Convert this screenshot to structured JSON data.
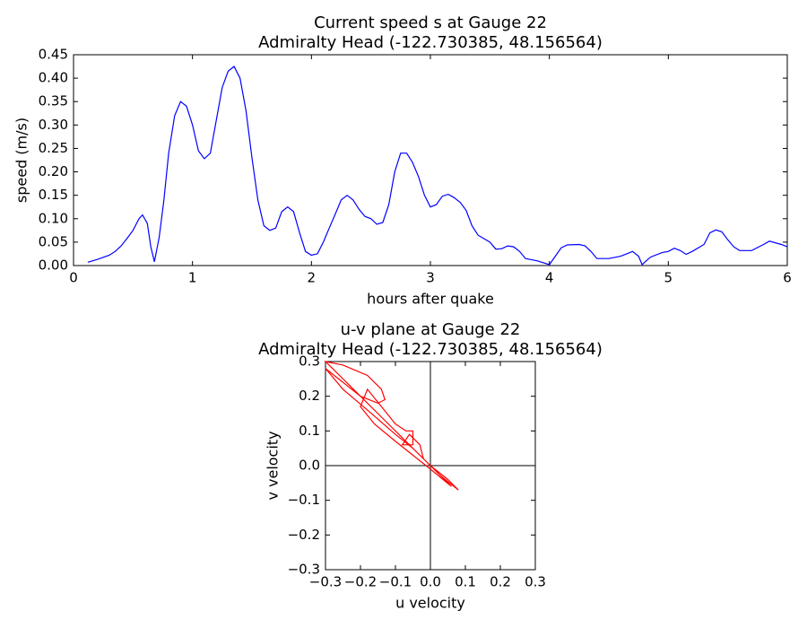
{
  "chart_data": [
    {
      "type": "line",
      "title": "Current speed s at Gauge 22",
      "subtitle": "Admiralty Head  (-122.730385, 48.156564)",
      "xlabel": "hours after quake",
      "ylabel": "speed (m/s)",
      "xlim": [
        0,
        6
      ],
      "xticks": [
        0,
        1,
        2,
        3,
        4,
        5,
        6
      ],
      "ylim": [
        0,
        0.45
      ],
      "yticks": [
        {
          "value": 0,
          "label": "0.00"
        },
        {
          "value": 0.05,
          "label": "0.05"
        },
        {
          "value": 0.1,
          "label": "0.10"
        },
        {
          "value": 0.15,
          "label": "0.15"
        },
        {
          "value": 0.2,
          "label": "0.20"
        },
        {
          "value": 0.25,
          "label": "0.25"
        },
        {
          "value": 0.3,
          "label": "0.30"
        },
        {
          "value": 0.35,
          "label": "0.35"
        },
        {
          "value": 0.4,
          "label": "0.40"
        },
        {
          "value": 0.45,
          "label": "0.45"
        }
      ],
      "grid": false,
      "zero_lines": false,
      "series": [
        {
          "color": "#0000ff",
          "x": [
            0.12,
            0.2,
            0.3,
            0.35,
            0.4,
            0.45,
            0.5,
            0.55,
            0.58,
            0.62,
            0.65,
            0.68,
            0.72,
            0.76,
            0.8,
            0.85,
            0.9,
            0.95,
            1.0,
            1.05,
            1.1,
            1.15,
            1.2,
            1.25,
            1.3,
            1.35,
            1.4,
            1.45,
            1.5,
            1.55,
            1.6,
            1.65,
            1.7,
            1.75,
            1.8,
            1.85,
            1.9,
            1.95,
            2.0,
            2.05,
            2.1,
            2.15,
            2.2,
            2.25,
            2.3,
            2.35,
            2.4,
            2.45,
            2.5,
            2.55,
            2.6,
            2.65,
            2.7,
            2.75,
            2.8,
            2.85,
            2.9,
            2.95,
            3.0,
            3.05,
            3.1,
            3.15,
            3.2,
            3.25,
            3.3,
            3.35,
            3.4,
            3.5,
            3.55,
            3.6,
            3.65,
            3.7,
            3.75,
            3.8,
            3.9,
            4.0,
            4.05,
            4.1,
            4.15,
            4.25,
            4.3,
            4.35,
            4.4,
            4.5,
            4.6,
            4.7,
            4.75,
            4.78,
            4.85,
            4.95,
            5.0,
            5.05,
            5.1,
            5.15,
            5.2,
            5.3,
            5.35,
            5.4,
            5.45,
            5.5,
            5.55,
            5.6,
            5.7,
            5.8,
            5.85,
            5.95,
            6.0
          ],
          "values": [
            0.007,
            0.013,
            0.022,
            0.03,
            0.042,
            0.058,
            0.075,
            0.1,
            0.108,
            0.09,
            0.04,
            0.008,
            0.06,
            0.14,
            0.24,
            0.32,
            0.35,
            0.34,
            0.3,
            0.245,
            0.228,
            0.24,
            0.31,
            0.38,
            0.415,
            0.425,
            0.4,
            0.33,
            0.23,
            0.14,
            0.085,
            0.075,
            0.08,
            0.115,
            0.125,
            0.115,
            0.07,
            0.03,
            0.022,
            0.025,
            0.05,
            0.08,
            0.11,
            0.14,
            0.15,
            0.14,
            0.12,
            0.105,
            0.1,
            0.088,
            0.092,
            0.13,
            0.2,
            0.24,
            0.24,
            0.22,
            0.19,
            0.15,
            0.125,
            0.13,
            0.148,
            0.152,
            0.145,
            0.135,
            0.118,
            0.085,
            0.065,
            0.05,
            0.035,
            0.036,
            0.042,
            0.04,
            0.03,
            0.015,
            0.01,
            0.002,
            0.02,
            0.038,
            0.044,
            0.045,
            0.042,
            0.03,
            0.015,
            0.015,
            0.02,
            0.03,
            0.02,
            0.002,
            0.018,
            0.028,
            0.03,
            0.037,
            0.032,
            0.024,
            0.03,
            0.045,
            0.07,
            0.076,
            0.072,
            0.055,
            0.04,
            0.032,
            0.032,
            0.045,
            0.052,
            0.045,
            0.04
          ]
        }
      ]
    },
    {
      "type": "line",
      "title": "u-v plane at Gauge 22",
      "subtitle": "Admiralty Head  (-122.730385, 48.156564)",
      "xlabel": "u velocity",
      "ylabel": "v velocity",
      "xlim": [
        -0.3,
        0.3
      ],
      "xticks": [
        {
          "value": -0.3,
          "label": "−0.3"
        },
        {
          "value": -0.2,
          "label": "−0.2"
        },
        {
          "value": -0.1,
          "label": "−0.1"
        },
        {
          "value": 0,
          "label": "0.0"
        },
        0.1,
        0.2,
        0.3
      ],
      "ylim": [
        -0.3,
        0.3
      ],
      "yticks": [
        {
          "value": -0.3,
          "label": "−0.3"
        },
        {
          "value": -0.2,
          "label": "−0.2"
        },
        {
          "value": -0.1,
          "label": "−0.1"
        },
        {
          "value": 0,
          "label": "0.0"
        },
        0.1,
        0.2,
        0.3
      ],
      "grid": false,
      "zero_lines": true,
      "series": [
        {
          "color": "#ff0000",
          "x": [
            0,
            0.05,
            0.08,
            0.03,
            -0.02,
            -0.08,
            -0.15,
            -0.22,
            -0.28,
            -0.3,
            -0.25,
            -0.18,
            -0.14,
            -0.13,
            -0.15,
            -0.2,
            -0.25,
            -0.3,
            -0.25,
            -0.18,
            -0.1,
            -0.05,
            0,
            0.04,
            0.06,
            0,
            -0.05,
            -0.1,
            -0.16,
            -0.2,
            -0.18,
            -0.14,
            -0.1,
            -0.07,
            -0.05,
            -0.05,
            -0.08,
            -0.06,
            -0.03,
            -0.02,
            0
          ],
          "values": [
            0,
            -0.04,
            -0.07,
            -0.03,
            0.02,
            0.08,
            0.15,
            0.22,
            0.28,
            0.3,
            0.29,
            0.26,
            0.22,
            0.19,
            0.18,
            0.2,
            0.24,
            0.28,
            0.22,
            0.16,
            0.09,
            0.05,
            0,
            -0.04,
            -0.06,
            -0.01,
            0.03,
            0.07,
            0.12,
            0.17,
            0.22,
            0.17,
            0.12,
            0.1,
            0.1,
            0.06,
            0.06,
            0.09,
            0.06,
            0.02,
            0
          ]
        }
      ]
    }
  ]
}
